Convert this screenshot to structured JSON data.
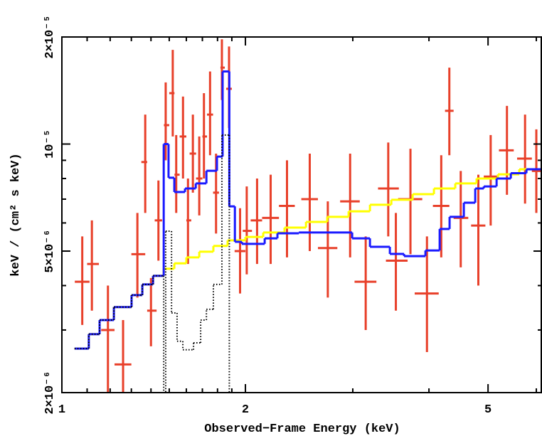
{
  "chart_data": {
    "type": "spectrum",
    "x_label": "Observed−Frame Energy (keV)",
    "y_label": "keV / (cm² s keV)",
    "log_x": true,
    "log_y": true,
    "xlim": [
      1,
      6.13
    ],
    "ylim": [
      2e-06,
      2e-05
    ],
    "xticks": [
      1,
      2,
      5
    ],
    "x_minor_ticks": [
      1.1,
      1.2,
      1.3,
      1.4,
      1.5,
      1.6,
      1.7,
      1.8,
      1.9,
      3,
      4,
      6
    ],
    "yticks": [
      {
        "value": 2e-06,
        "label": "2×10⁻⁶"
      },
      {
        "value": 5e-06,
        "label": "5×10⁻⁶"
      },
      {
        "value": 1e-05,
        "label": "10⁻⁵"
      },
      {
        "value": 2e-05,
        "label": "2×10⁻⁵"
      }
    ],
    "y_minor_ticks": [
      3e-06,
      4e-06,
      6e-06,
      7e-06,
      8e-06,
      9e-06
    ],
    "errorbars": {
      "color": "#e8402a",
      "x": [
        1.08,
        1.12,
        1.19,
        1.26,
        1.33,
        1.37,
        1.4,
        1.44,
        1.48,
        1.52,
        1.54,
        1.58,
        1.61,
        1.64,
        1.68,
        1.71,
        1.75,
        1.79,
        1.83,
        1.88,
        1.96,
        2.01,
        2.09,
        2.2,
        2.34,
        2.55,
        2.73,
        2.97,
        3.15,
        3.43,
        3.53,
        3.73,
        3.97,
        4.19,
        4.32,
        4.51,
        4.82,
        5.05,
        5.37,
        5.75,
        6.0
      ],
      "xlo": [
        1.05,
        1.1,
        1.16,
        1.22,
        1.3,
        1.35,
        1.38,
        1.42,
        1.47,
        1.5,
        1.53,
        1.56,
        1.6,
        1.62,
        1.66,
        1.7,
        1.73,
        1.77,
        1.82,
        1.86,
        1.92,
        1.98,
        2.04,
        2.13,
        2.27,
        2.47,
        2.63,
        2.86,
        3.02,
        3.3,
        3.4,
        3.56,
        3.79,
        4.06,
        4.25,
        4.39,
        4.69,
        4.92,
        5.21,
        5.58,
        5.9
      ],
      "xhi": [
        1.11,
        1.15,
        1.22,
        1.3,
        1.37,
        1.38,
        1.43,
        1.46,
        1.5,
        1.53,
        1.56,
        1.6,
        1.63,
        1.66,
        1.7,
        1.73,
        1.77,
        1.81,
        1.85,
        1.9,
        2.0,
        2.05,
        2.13,
        2.27,
        2.41,
        2.63,
        2.83,
        3.08,
        3.28,
        3.57,
        3.69,
        3.9,
        4.15,
        4.32,
        4.39,
        4.64,
        4.95,
        5.19,
        5.51,
        5.9,
        6.13
      ],
      "y": [
        4.1e-06,
        4.6e-06,
        3e-06,
        2.4e-06,
        4.9e-06,
        8.9e-06,
        3.4e-06,
        6.1e-06,
        1.13e-05,
        1.39e-05,
        8.2e-06,
        1.05e-05,
        6.1e-06,
        9.4e-06,
        8e-06,
        1.05e-05,
        1.21e-05,
        7.3e-06,
        1.64e-05,
        1.43e-05,
        5e-06,
        5.7e-06,
        6.1e-06,
        6.2e-06,
        6.7e-06,
        7e-06,
        5.1e-06,
        6.9e-06,
        4.1e-06,
        7.5e-06,
        4.7e-06,
        7e-06,
        3.8e-06,
        6.7e-06,
        1.24e-05,
        6.2e-06,
        5.9e-06,
        8.1e-06,
        9.6e-06,
        9.1e-06,
        8.4e-06
      ],
      "ylo": [
        3.1e-06,
        3.4e-06,
        2e-06,
        1.9e-06,
        3.7e-06,
        6.4e-06,
        2.7e-06,
        4.7e-06,
        9e-06,
        1.05e-05,
        6.4e-06,
        8e-06,
        4.6e-06,
        7.3e-06,
        6.3e-06,
        8e-06,
        9.3e-06,
        5.6e-06,
        1.33e-05,
        1.11e-05,
        3.8e-06,
        4.3e-06,
        4.6e-06,
        4.6e-06,
        4.8e-06,
        5e-06,
        3.7e-06,
        4.8e-06,
        3e-06,
        5.5e-06,
        3.4e-06,
        4.9e-06,
        2.6e-06,
        4.8e-06,
        9.3e-06,
        4.5e-06,
        4e-06,
        5.9e-06,
        7.2e-06,
        6.8e-06,
        6.4e-06
      ],
      "yhi": [
        5.5e-06,
        6.1e-06,
        4e-06,
        3.2e-06,
        6.4e-06,
        1.21e-05,
        4.2e-06,
        7.9e-06,
        1.49e-05,
        1.84e-05,
        1.06e-05,
        1.36e-05,
        8e-06,
        1.21e-05,
        1.05e-05,
        1.39e-05,
        1.6e-05,
        9.4e-06,
        1.97e-05,
        1.88e-05,
        6.6e-06,
        7.6e-06,
        8e-06,
        8.2e-06,
        9e-06,
        9.4e-06,
        6.9e-06,
        9.4e-06,
        5.5e-06,
        1.01e-05,
        6.4e-06,
        9.7e-06,
        5.5e-06,
        9.3e-06,
        1.64e-05,
        8.4e-06,
        8.2e-06,
        1.06e-05,
        1.28e-05,
        1.21e-05,
        1.1e-05
      ]
    },
    "models": [
      {
        "color": "#ffff00",
        "style": "solid",
        "bins": [
          1.049,
          1.107,
          1.153,
          1.217,
          1.301,
          1.355,
          1.411,
          1.469,
          1.529,
          1.6,
          1.68,
          1.772,
          1.87,
          2.0,
          2.139,
          2.318,
          2.514,
          2.724,
          2.953,
          3.201,
          3.47,
          3.761,
          4.076,
          4.418,
          4.788,
          5.19,
          5.626,
          6.13
        ],
        "values": [
          2.66e-06,
          2.92e-06,
          3.2e-06,
          3.48e-06,
          3.76e-06,
          4.03e-06,
          4.26e-06,
          4.46e-06,
          4.62e-06,
          4.8e-06,
          4.98e-06,
          5.17e-06,
          5.36e-06,
          5.48e-06,
          5.64e-06,
          5.82e-06,
          6.04e-06,
          6.24e-06,
          6.47e-06,
          6.75e-06,
          6.97e-06,
          7.23e-06,
          7.5e-06,
          7.75e-06,
          8e-06,
          8.22e-06,
          8.49e-06
        ]
      },
      {
        "color": "#1a1aff",
        "style": "solid",
        "bins": [
          1.049,
          1.107,
          1.153,
          1.217,
          1.301,
          1.355,
          1.411,
          1.469,
          1.496,
          1.529,
          1.592,
          1.658,
          1.726,
          1.796,
          1.835,
          1.882,
          1.922,
          1.973,
          2.151,
          2.257,
          2.447,
          2.993,
          3.201,
          3.451,
          3.641,
          3.947,
          4.165,
          4.324,
          4.563,
          4.764,
          4.92,
          5.164,
          5.449,
          5.78,
          6.13
        ],
        "values": [
          2.66e-06,
          2.92e-06,
          3.2e-06,
          3.48e-06,
          3.76e-06,
          4.03e-06,
          4.26e-06,
          1e-05,
          8.04e-06,
          7.33e-06,
          7.5e-06,
          7.75e-06,
          8.41e-06,
          9.22e-06,
          1.6e-05,
          6.68e-06,
          5.31e-06,
          5.24e-06,
          5.43e-06,
          5.61e-06,
          5.64e-06,
          5.43e-06,
          5.14e-06,
          4.91e-06,
          4.84e-06,
          5.02e-06,
          5.77e-06,
          6.24e-06,
          6.84e-06,
          7.5e-06,
          7.6e-06,
          8e-06,
          8.28e-06,
          8.49e-06
        ]
      },
      {
        "color": "#000000",
        "style": "dotted",
        "bins": [
          1.049,
          1.107,
          1.153,
          1.217,
          1.301,
          1.355,
          1.411,
          1.469,
          1.48,
          1.513,
          1.545,
          1.579,
          1.644,
          1.689,
          1.726,
          1.772,
          1.83,
          1.882,
          2.0
        ],
        "values": [
          2.66e-06,
          2.92e-06,
          3.2e-06,
          3.48e-06,
          3.76e-06,
          4.03e-06,
          4.26e-06,
          1.9e-06,
          5.69e-06,
          3.35e-06,
          2.79e-06,
          2.64e-06,
          2.76e-06,
          3.2e-06,
          3.43e-06,
          4.03e-06,
          1.06e-05,
          1.9e-06
        ]
      }
    ]
  }
}
